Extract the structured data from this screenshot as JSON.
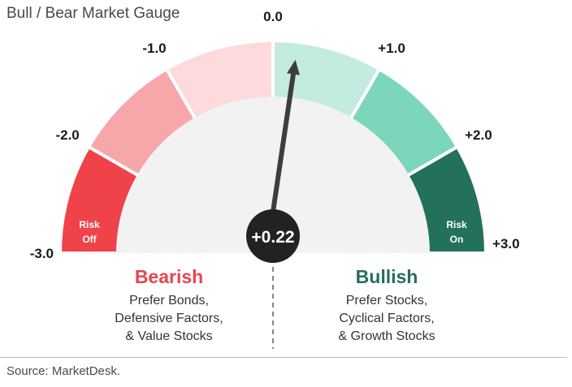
{
  "title": "Bull / Bear Market Gauge",
  "source": "Source: MarketDesk.",
  "chart_data": {
    "type": "gauge",
    "range": [
      -3.0,
      3.0
    ],
    "value": 0.22,
    "value_label": "+0.22",
    "ticks": [
      {
        "value": -3.0,
        "label": "-3.0"
      },
      {
        "value": -2.0,
        "label": "-2.0"
      },
      {
        "value": -1.0,
        "label": "-1.0"
      },
      {
        "value": 0.0,
        "label": "0.0"
      },
      {
        "value": 1.0,
        "label": "+1.0"
      },
      {
        "value": 2.0,
        "label": "+2.0"
      },
      {
        "value": 3.0,
        "label": "+3.0"
      }
    ],
    "segments": [
      {
        "from": -3,
        "to": -2,
        "color": "#f04349"
      },
      {
        "from": -2,
        "to": -1,
        "color": "#f7a7aa"
      },
      {
        "from": -1,
        "to": 0,
        "color": "#fddadb"
      },
      {
        "from": 0,
        "to": 1,
        "color": "#c4ebdf"
      },
      {
        "from": 1,
        "to": 2,
        "color": "#7cd6bb"
      },
      {
        "from": 2,
        "to": 3,
        "color": "#23715c"
      }
    ],
    "zone_labels": {
      "risk_off": [
        "Risk",
        "Off"
      ],
      "risk_on": [
        "Risk",
        "On"
      ]
    },
    "bearish": {
      "label": "Bearish",
      "color": "#e8454b",
      "lines": [
        "Prefer Bonds,",
        "Defensive Factors,",
        "& Value Stocks"
      ]
    },
    "bullish": {
      "label": "Bullish",
      "color": "#226f5c",
      "lines": [
        "Prefer Stocks,",
        "Cyclical Factors,",
        "& Growth Stocks"
      ]
    },
    "inner_color": "#f2f2f2",
    "needle_color": "#3d3d3d",
    "hub_color": "#222222"
  }
}
